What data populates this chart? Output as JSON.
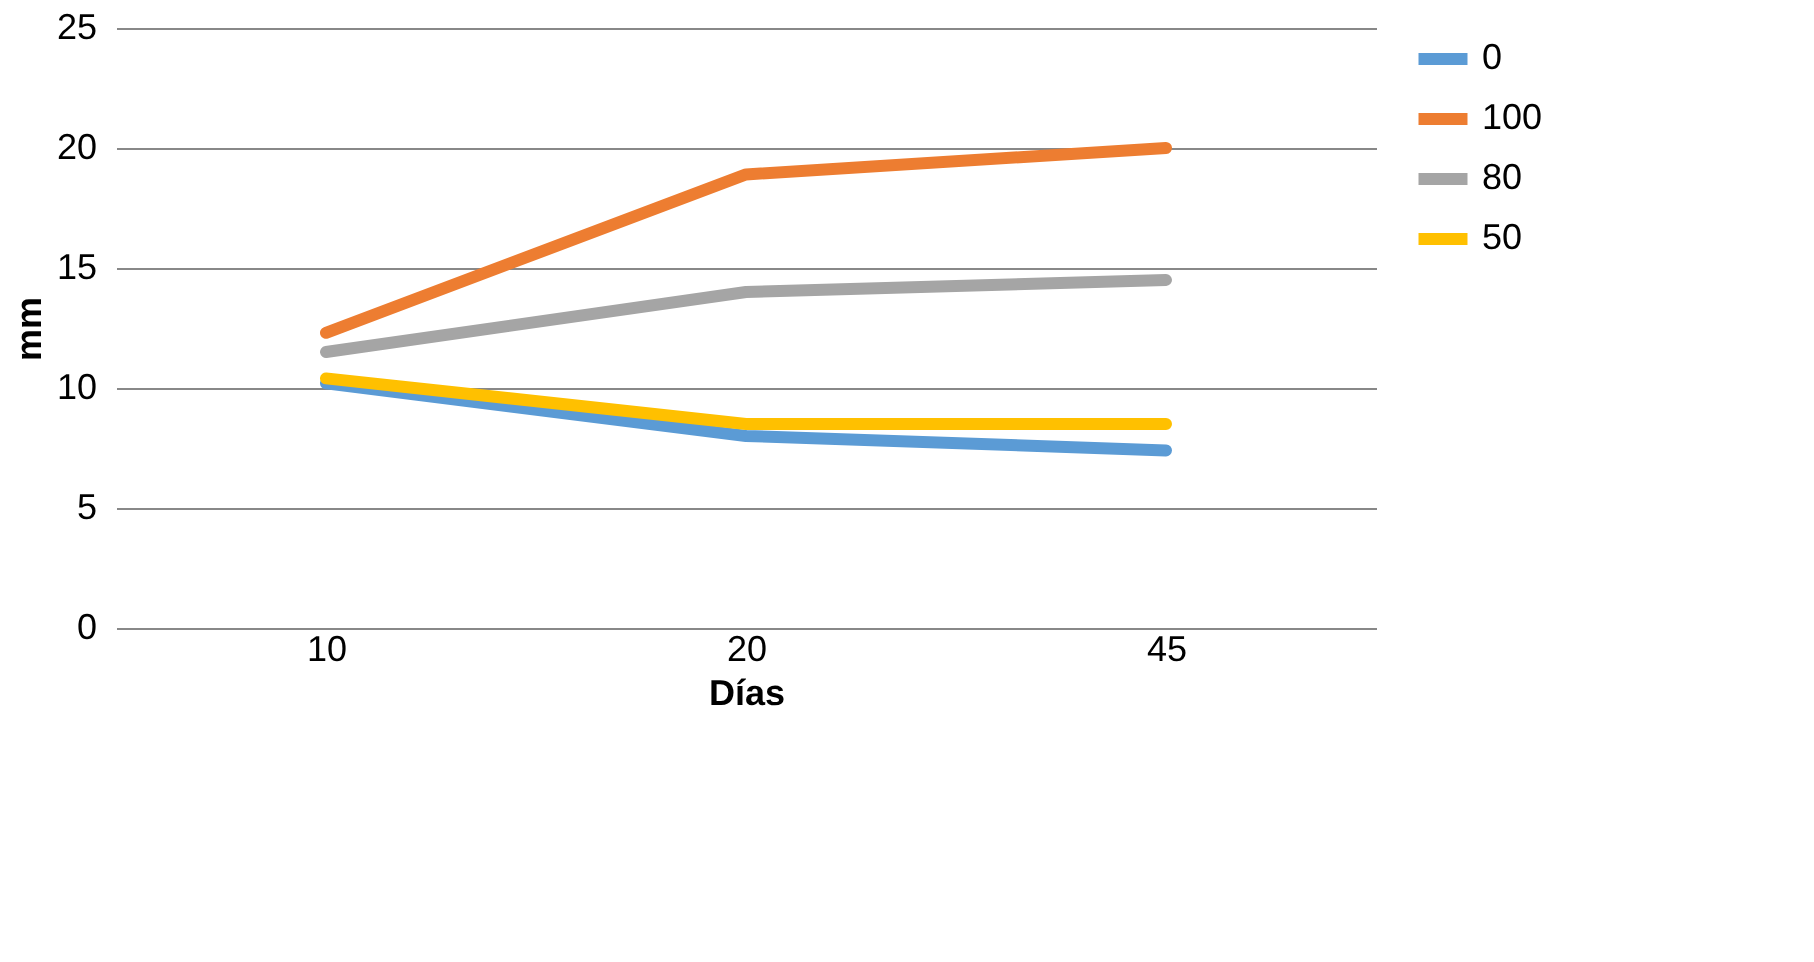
{
  "chart_data": {
    "type": "line",
    "xlabel": "Días",
    "ylabel": "mm",
    "categories": [
      "10",
      "20",
      "45"
    ],
    "series": [
      {
        "name": "0",
        "color": "#5b9bd5",
        "values": [
          10.2,
          8.0,
          7.4
        ]
      },
      {
        "name": "100",
        "color": "#ed7d31",
        "values": [
          12.3,
          18.9,
          20.0
        ]
      },
      {
        "name": "80",
        "color": "#a5a5a5",
        "values": [
          11.5,
          14.0,
          14.5
        ]
      },
      {
        "name": "50",
        "color": "#ffc000",
        "values": [
          10.4,
          8.5,
          8.5
        ]
      }
    ],
    "ylim": [
      0,
      25
    ],
    "yticks": [
      0,
      5,
      10,
      15,
      20,
      25
    ],
    "grid": "y",
    "legend": "right",
    "marker": "none",
    "line_style": "solid"
  }
}
